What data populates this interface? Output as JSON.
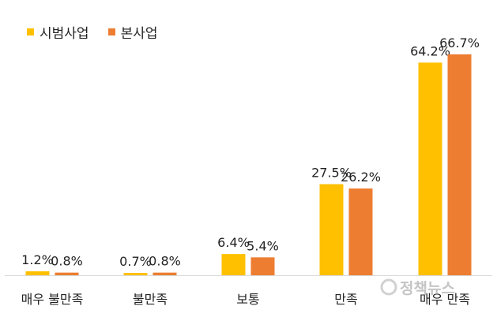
{
  "colors": {
    "series_1": "#FFC000",
    "series_2": "#ED7D31",
    "axis": "#d9d9d9",
    "text": "#222222"
  },
  "chart_data": {
    "type": "bar",
    "categories": [
      "매우 불만족",
      "불만족",
      "보통",
      "만족",
      "매우 만족"
    ],
    "series": [
      {
        "name": "시범사업",
        "values": [
          1.2,
          0.7,
          6.4,
          27.5,
          64.2
        ],
        "labels": [
          "1.2%",
          "0.7%",
          "6.4%",
          "27.5%",
          "64.2%"
        ]
      },
      {
        "name": "본사업",
        "values": [
          0.8,
          0.8,
          5.4,
          26.2,
          66.7
        ],
        "labels": [
          "0.8%",
          "0.8%",
          "5.4%",
          "26.2%",
          "66.7%"
        ]
      }
    ],
    "ylim": [
      0,
      70
    ],
    "legend": "top-left",
    "grid": false,
    "watermark": "정책뉴스"
  }
}
